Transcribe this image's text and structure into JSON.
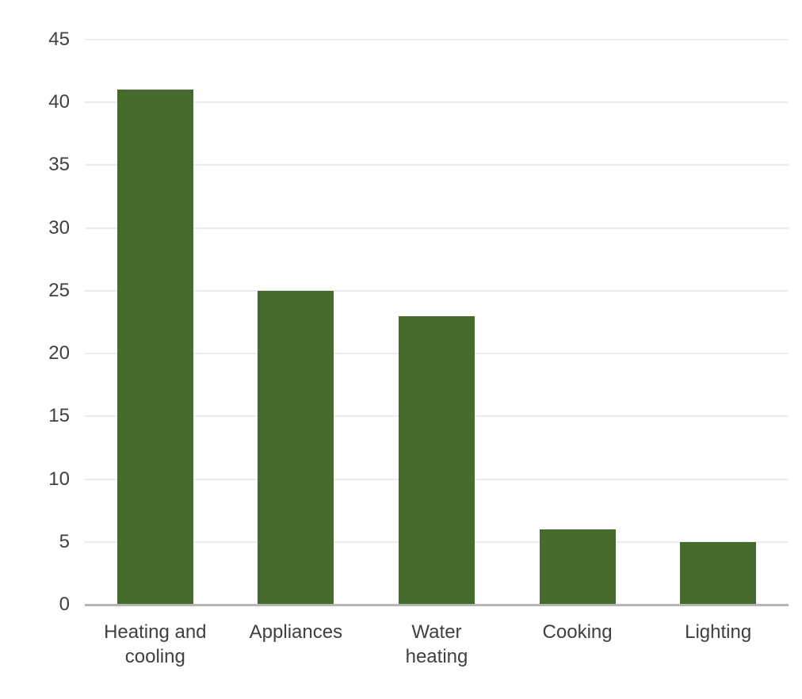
{
  "chart_data": {
    "type": "bar",
    "title": "",
    "xlabel": "",
    "ylabel": "",
    "categories": [
      "Heating and cooling",
      "Appliances",
      "Water heating",
      "Cooking",
      "Lighting"
    ],
    "values": [
      41,
      25,
      23,
      6,
      5
    ],
    "ylim": [
      0,
      45
    ],
    "ytick_step": 5,
    "ytick_labels": [
      "0",
      "5",
      "10",
      "15",
      "20",
      "25",
      "30",
      "35",
      "40",
      "45"
    ],
    "grid": true,
    "legend": false,
    "colors": {
      "bar": "#466b2c",
      "gridline": "#ececec",
      "axis_line": "#b5b5b5",
      "tick_label": "#404040",
      "background": "#ffffff"
    }
  }
}
